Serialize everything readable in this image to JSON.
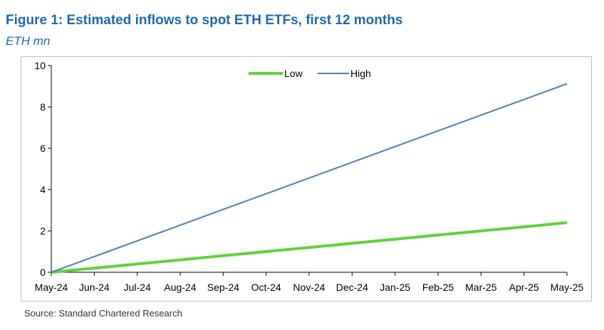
{
  "figure": {
    "title": "Figure 1: Estimated inflows to spot ETH ETFs, first 12 months",
    "subtitle": "ETH mn",
    "source": "Source: Standard Chartered Research"
  },
  "chart_data": {
    "type": "line",
    "title": "Figure 1: Estimated inflows to spot ETH ETFs, first 12 months",
    "subtitle": "ETH mn",
    "xlabel": "",
    "ylabel": "",
    "categories": [
      "May-24",
      "Jun-24",
      "Jul-24",
      "Aug-24",
      "Sep-24",
      "Oct-24",
      "Nov-24",
      "Dec-24",
      "Jan-25",
      "Feb-25",
      "Mar-25",
      "Apr-25",
      "May-25"
    ],
    "series": [
      {
        "name": "Low",
        "color": "#5fd13b",
        "values": [
          0,
          0.2,
          0.4,
          0.6,
          0.8,
          1.0,
          1.2,
          1.4,
          1.6,
          1.8,
          2.0,
          2.2,
          2.4
        ]
      },
      {
        "name": "High",
        "color": "#4a7ebb",
        "values": [
          0,
          0.76,
          1.52,
          2.28,
          3.04,
          3.8,
          4.56,
          5.32,
          6.08,
          6.84,
          7.6,
          8.36,
          9.12
        ]
      }
    ],
    "ylim": [
      0,
      10
    ],
    "yticks": [
      0,
      2,
      4,
      6,
      8,
      10
    ],
    "grid": false,
    "legend_position": "top-center"
  }
}
